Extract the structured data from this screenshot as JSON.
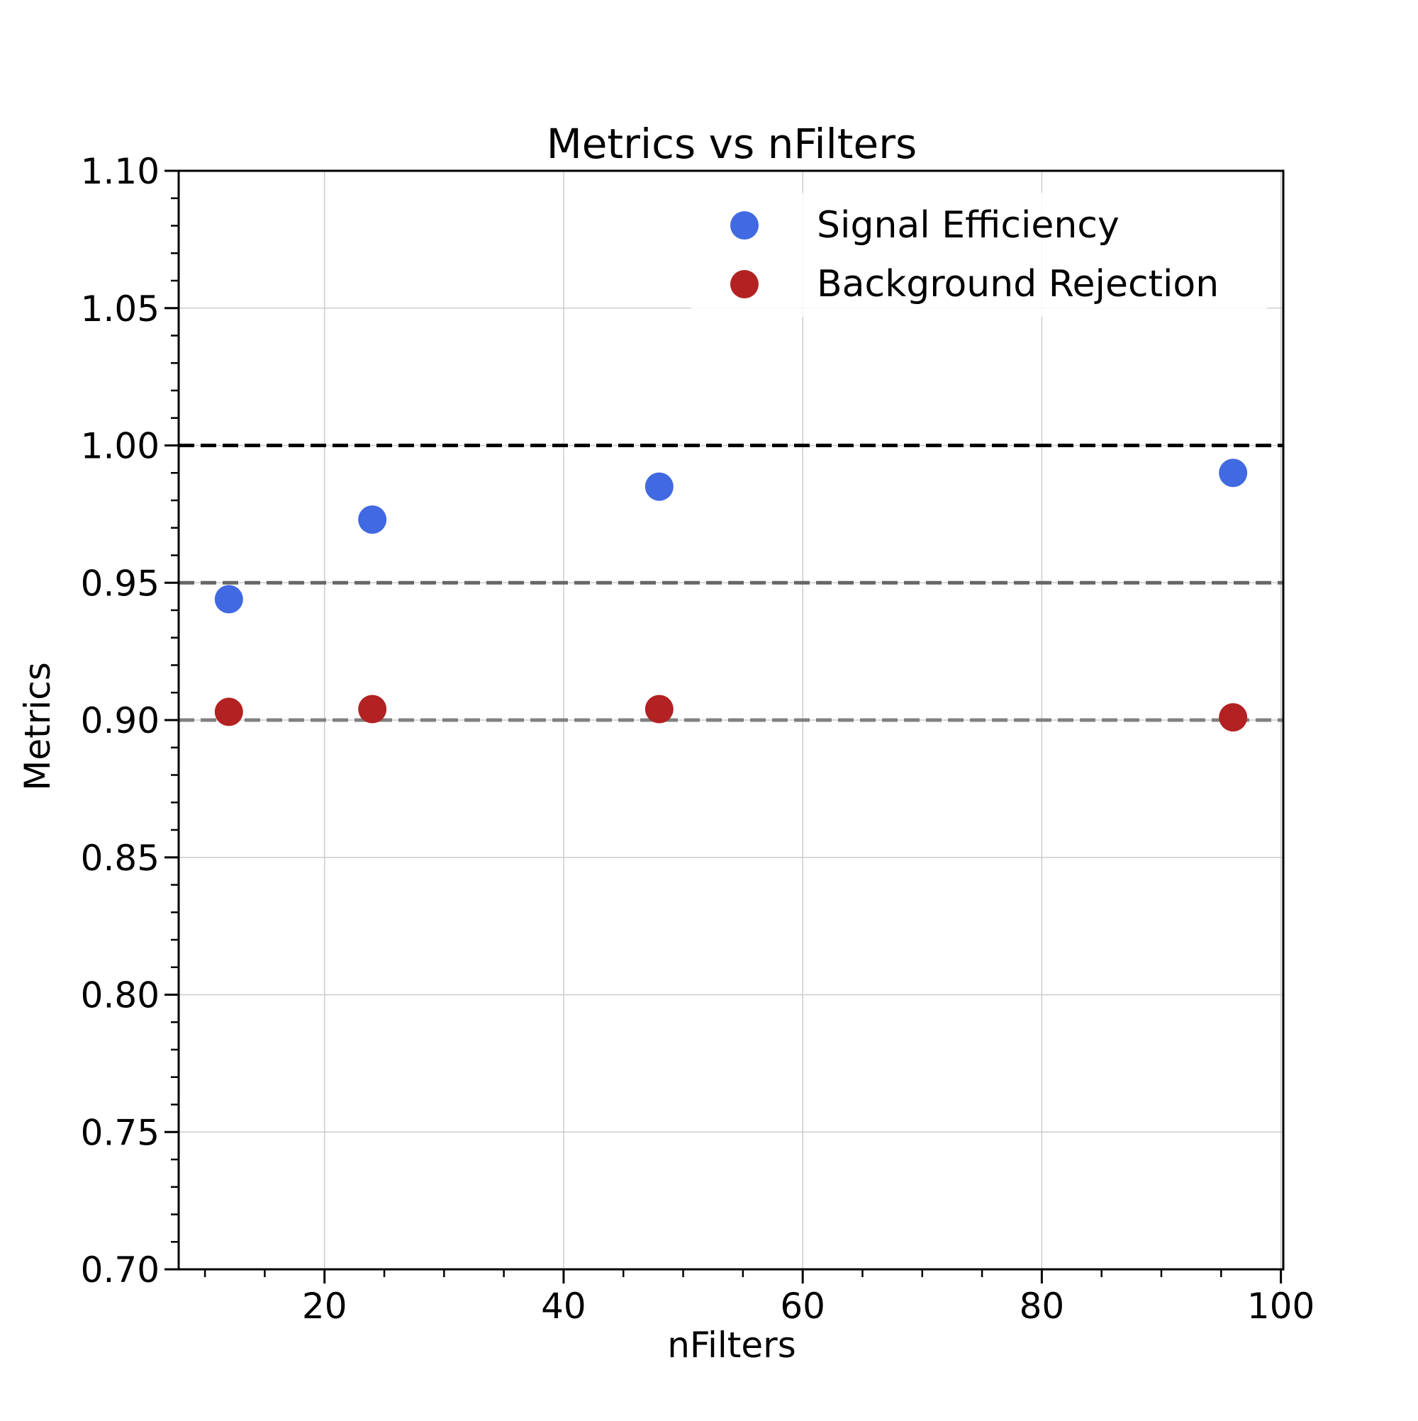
{
  "chart_data": {
    "type": "scatter",
    "title": "Metrics vs nFilters",
    "xlabel": "nFilters",
    "ylabel": "Metrics",
    "xlim": [
      7.8,
      100.2
    ],
    "ylim": [
      0.7,
      1.1
    ],
    "x_major_ticks": [
      20,
      40,
      60,
      80,
      100
    ],
    "x_minor_step": 5,
    "y_major_ticks": [
      0.7,
      0.75,
      0.8,
      0.85,
      0.9,
      0.95,
      1.0,
      1.05,
      1.1
    ],
    "y_tick_labels": [
      "0.70",
      "0.75",
      "0.80",
      "0.85",
      "0.90",
      "0.95",
      "1.00",
      "1.05",
      "1.10"
    ],
    "y_minor_step": 0.01,
    "grid": true,
    "legend_position": "top-right",
    "reference_lines": [
      {
        "y": 1.0,
        "color": "#000000",
        "style": "dashed"
      },
      {
        "y": 0.95,
        "color": "#666666",
        "style": "dashed"
      },
      {
        "y": 0.9,
        "color": "#808080",
        "style": "dashed"
      }
    ],
    "series": [
      {
        "name": "Signal Efficiency",
        "color": "#4169E1",
        "x": [
          12,
          24,
          48,
          96
        ],
        "y": [
          0.944,
          0.973,
          0.985,
          0.99
        ]
      },
      {
        "name": "Background Rejection",
        "color": "#B22222",
        "x": [
          12,
          24,
          48,
          96
        ],
        "y": [
          0.903,
          0.904,
          0.904,
          0.901
        ]
      }
    ]
  }
}
